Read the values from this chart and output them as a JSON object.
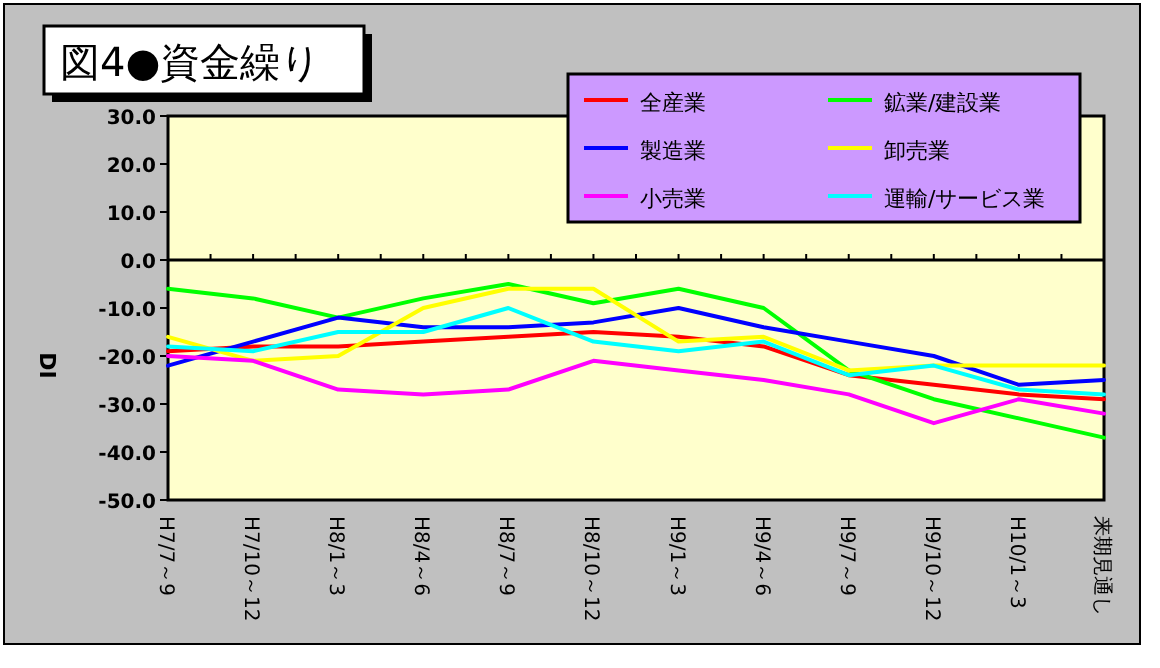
{
  "chart_data": {
    "type": "line",
    "title": "図4●資金繰り",
    "ylabel": "DI",
    "categories": [
      "H7/7～9",
      "H7/10～12",
      "H8/1～3",
      "H8/4～6",
      "H8/7～9",
      "H8/10～12",
      "H9/1～3",
      "H9/4～6",
      "H9/7～9",
      "H9/10～12",
      "H10/1～3",
      "来期見通し"
    ],
    "series": [
      {
        "name": "全産業",
        "color": "#ff0000",
        "values": [
          -19,
          -18,
          -18,
          -17,
          -16,
          -15,
          -16,
          -18,
          -24,
          -26,
          -28,
          -29
        ]
      },
      {
        "name": "鉱業/建設業",
        "color": "#00ff00",
        "values": [
          -6,
          -8,
          -12,
          -8,
          -5,
          -9,
          -6,
          -10,
          -23,
          -29,
          -33,
          -37
        ]
      },
      {
        "name": "製造業",
        "color": "#0000ff",
        "values": [
          -22,
          -17,
          -12,
          -14,
          -14,
          -13,
          -10,
          -14,
          -17,
          -20,
          -26,
          -25
        ]
      },
      {
        "name": "卸売業",
        "color": "#ffff00",
        "values": [
          -16,
          -21,
          -20,
          -10,
          -6,
          -6,
          -17,
          -16,
          -23,
          -22,
          -22,
          -22
        ]
      },
      {
        "name": "小売業",
        "color": "#ff00ff",
        "values": [
          -20,
          -21,
          -27,
          -28,
          -27,
          -21,
          -23,
          -25,
          -28,
          -34,
          -29,
          -32
        ]
      },
      {
        "name": "運輸/サービス業",
        "color": "#00ffff",
        "values": [
          -18,
          -19,
          -15,
          -15,
          -10,
          -17,
          -19,
          -17,
          -24,
          -22,
          -27,
          -28
        ]
      }
    ],
    "ylim": [
      -50,
      30
    ],
    "yticks": [
      {
        "value": 30,
        "label": "30.0"
      },
      {
        "value": 20,
        "label": "20.0"
      },
      {
        "value": 10,
        "label": "10.0"
      },
      {
        "value": 0,
        "label": "0.0"
      },
      {
        "value": -10,
        "label": "-10.0"
      },
      {
        "value": -20,
        "label": "-20.0"
      },
      {
        "value": -30,
        "label": "-30.0"
      },
      {
        "value": -40,
        "label": "-40.0"
      },
      {
        "value": -50,
        "label": "-50.0"
      }
    ],
    "legend": "top right"
  }
}
